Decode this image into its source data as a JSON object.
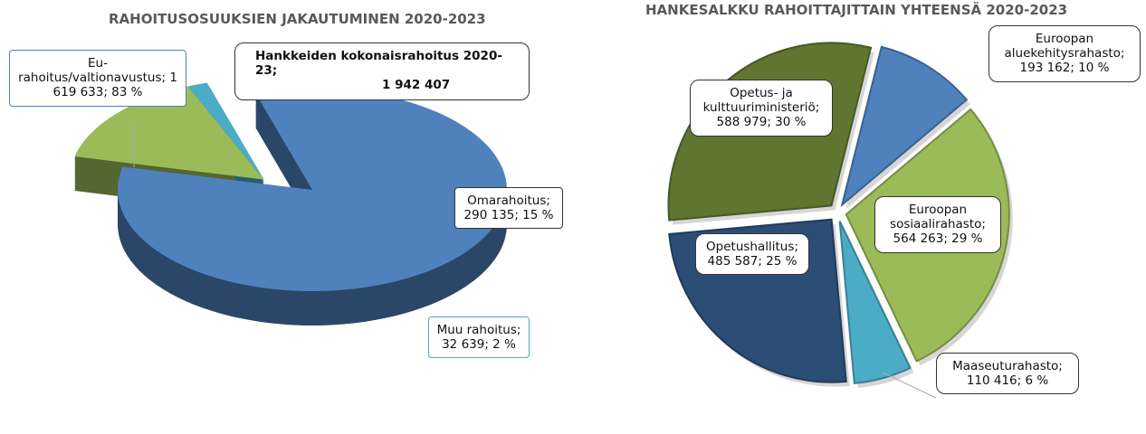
{
  "chart_data": [
    {
      "type": "pie3d",
      "title": "RAHOITUSOSUUKSIEN JAKAUTUMINEN 2020-2023",
      "annotations": [
        "Hankkeiden kokonaisrahoitus 2020-23;",
        "1 942 407"
      ],
      "values": [
        1619633,
        290135,
        32639
      ],
      "value_labels": [
        "Eu-rahoitus/valtionavustus; 1 619 633; 83 %",
        "Omarahoitus; 290 135; 15 %",
        "Muu rahoitus; 32 639; 2 %"
      ],
      "colors": [
        "#4f81bd",
        "#9bbb59",
        "#4bacc6"
      ]
    },
    {
      "type": "pie",
      "title": "HANKESALKKU RAHOITTAJITTAIN YHTEENSÄ 2020-2023",
      "values": [
        193162,
        564263,
        110416,
        485587,
        588979
      ],
      "value_labels": [
        "Euroopan aluekehitysrahasto; 193 162; 10 %",
        "Euroopan sosiaalirahasto; 564 263; 29 %",
        "Maaseuturahasto; 110 416; 6 %",
        "Opetushallitus; 485 587; 25 %",
        "Opetus- ja kulttuuriministeriö; 588 979; 30 %"
      ],
      "colors": [
        "#4f81bd",
        "#9bbb59",
        "#4bacc6",
        "#2c4d75",
        "#5f7530"
      ]
    }
  ]
}
